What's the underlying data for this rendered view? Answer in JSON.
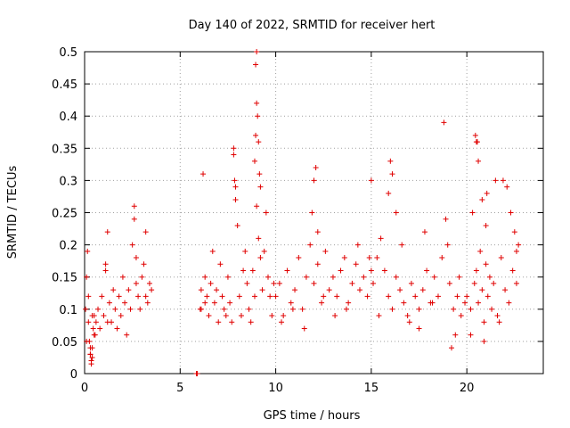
{
  "chart_data": {
    "type": "scatter",
    "title": "Day 140 of 2022, SRMTID for receiver hert",
    "xlabel": "GPS time / hours",
    "ylabel": "SRMTID / TECUs",
    "xlim": [
      0,
      24
    ],
    "ylim": [
      0,
      0.5
    ],
    "xticks": [
      0,
      5,
      10,
      15,
      20
    ],
    "xtick_labels": [
      "0",
      "5",
      "10",
      "15",
      "20"
    ],
    "yticks": [
      0,
      0.05,
      0.1,
      0.15,
      0.2,
      0.25,
      0.3,
      0.35,
      0.4,
      0.45,
      0.5
    ],
    "ytick_labels": [
      "0",
      "0.05",
      "0.1",
      "0.15",
      "0.2",
      "0.25",
      "0.3",
      "0.35",
      "0.4",
      "0.45",
      "0.5"
    ],
    "grid": true,
    "legend": "none",
    "marker": "plus",
    "color": "#e00000",
    "x": [
      0.05,
      0.1,
      0.15,
      0.2,
      0.25,
      0.3,
      0.35,
      0.4,
      0.45,
      0.5,
      0.55,
      0.6,
      0.7,
      0.8,
      0.9,
      1.0,
      1.1,
      1.2,
      1.3,
      1.4,
      1.5,
      1.6,
      1.7,
      1.8,
      1.9,
      2.0,
      2.1,
      2.2,
      2.3,
      2.4,
      2.5,
      2.6,
      2.7,
      2.8,
      2.9,
      3.0,
      3.1,
      3.2,
      3.3,
      3.4,
      3.5,
      0.1,
      0.2,
      0.3,
      0.4,
      0.5,
      1.1,
      1.2,
      2.6,
      2.7,
      3.2,
      0.3,
      0.35,
      0.4,
      5.85,
      5.9,
      6.05,
      6.1,
      6.2,
      6.3,
      6.4,
      6.5,
      6.6,
      6.7,
      6.8,
      6.9,
      7.0,
      7.1,
      7.2,
      7.3,
      7.4,
      7.5,
      7.6,
      7.7,
      7.8,
      7.9,
      8.0,
      8.1,
      8.2,
      8.3,
      8.4,
      8.5,
      8.6,
      8.7,
      8.8,
      8.9,
      9.0,
      9.1,
      9.2,
      9.3,
      9.4,
      9.5,
      9.6,
      9.7,
      9.8,
      9.9,
      6.1,
      6.3,
      7.8,
      7.85,
      7.9,
      8.9,
      8.95,
      9.0,
      9.05,
      9.1,
      9.15,
      9.2,
      8.95,
      9.0,
      10.0,
      10.2,
      10.4,
      10.6,
      10.8,
      11.0,
      11.2,
      11.4,
      11.6,
      11.8,
      12.0,
      12.2,
      12.4,
      12.6,
      12.8,
      13.0,
      13.2,
      13.4,
      13.6,
      13.8,
      14.0,
      14.2,
      14.4,
      14.6,
      14.8,
      15.0,
      11.9,
      12.0,
      12.1,
      12.2,
      10.3,
      10.9,
      11.5,
      12.5,
      13.1,
      13.7,
      14.3,
      14.9,
      15.1,
      15.3,
      15.5,
      15.7,
      15.9,
      16.1,
      16.3,
      16.5,
      16.7,
      16.9,
      17.1,
      17.3,
      17.5,
      17.7,
      17.9,
      18.1,
      18.3,
      18.5,
      18.7,
      18.9,
      19.1,
      19.3,
      19.5,
      19.7,
      19.9,
      15.0,
      15.9,
      16.0,
      16.1,
      16.3,
      17.0,
      17.5,
      18.2,
      18.8,
      19.0,
      19.2,
      19.4,
      19.6,
      15.4,
      16.6,
      17.8,
      20.0,
      20.2,
      20.4,
      20.5,
      20.6,
      20.7,
      20.8,
      20.9,
      21.0,
      21.1,
      21.2,
      21.3,
      21.4,
      21.6,
      21.8,
      22.0,
      22.2,
      22.4,
      22.6,
      22.7,
      20.3,
      20.5,
      20.6,
      20.8,
      21.0,
      21.5,
      21.9,
      22.1,
      22.3,
      22.5,
      20.2,
      20.9,
      21.7,
      22.6,
      20.45,
      20.55,
      21.05
    ],
    "y": [
      0.1,
      0.15,
      0.19,
      0.08,
      0.05,
      0.03,
      0.02,
      0.04,
      0.07,
      0.09,
      0.06,
      0.08,
      0.1,
      0.07,
      0.12,
      0.09,
      0.16,
      0.22,
      0.11,
      0.08,
      0.13,
      0.1,
      0.07,
      0.12,
      0.09,
      0.15,
      0.11,
      0.06,
      0.13,
      0.1,
      0.2,
      0.24,
      0.14,
      0.12,
      0.1,
      0.15,
      0.17,
      0.12,
      0.11,
      0.14,
      0.13,
      0.05,
      0.12,
      0.03,
      0.09,
      0.06,
      0.17,
      0.08,
      0.26,
      0.18,
      0.22,
      0.04,
      0.015,
      0.025,
      0.0,
      0.0,
      0.1,
      0.13,
      0.31,
      0.15,
      0.12,
      0.09,
      0.14,
      0.19,
      0.11,
      0.13,
      0.08,
      0.17,
      0.12,
      0.1,
      0.09,
      0.15,
      0.11,
      0.08,
      0.35,
      0.29,
      0.23,
      0.12,
      0.09,
      0.16,
      0.19,
      0.14,
      0.1,
      0.08,
      0.16,
      0.12,
      0.26,
      0.21,
      0.18,
      0.13,
      0.19,
      0.25,
      0.15,
      0.12,
      0.09,
      0.14,
      0.1,
      0.11,
      0.34,
      0.3,
      0.27,
      0.33,
      0.37,
      0.42,
      0.4,
      0.36,
      0.31,
      0.29,
      0.48,
      0.5,
      0.12,
      0.14,
      0.09,
      0.16,
      0.11,
      0.13,
      0.18,
      0.1,
      0.15,
      0.2,
      0.14,
      0.17,
      0.11,
      0.19,
      0.13,
      0.15,
      0.12,
      0.16,
      0.18,
      0.11,
      0.14,
      0.17,
      0.13,
      0.15,
      0.12,
      0.16,
      0.25,
      0.3,
      0.32,
      0.22,
      0.08,
      0.1,
      0.07,
      0.12,
      0.09,
      0.1,
      0.2,
      0.18,
      0.14,
      0.18,
      0.21,
      0.16,
      0.12,
      0.1,
      0.15,
      0.13,
      0.11,
      0.09,
      0.14,
      0.12,
      0.1,
      0.13,
      0.16,
      0.11,
      0.15,
      0.12,
      0.18,
      0.24,
      0.14,
      0.1,
      0.12,
      0.09,
      0.11,
      0.3,
      0.28,
      0.33,
      0.31,
      0.25,
      0.08,
      0.07,
      0.11,
      0.39,
      0.2,
      0.04,
      0.06,
      0.15,
      0.09,
      0.2,
      0.22,
      0.12,
      0.1,
      0.14,
      0.16,
      0.11,
      0.19,
      0.13,
      0.08,
      0.17,
      0.12,
      0.15,
      0.1,
      0.14,
      0.09,
      0.18,
      0.13,
      0.11,
      0.16,
      0.19,
      0.2,
      0.25,
      0.36,
      0.33,
      0.27,
      0.23,
      0.3,
      0.3,
      0.29,
      0.25,
      0.22,
      0.06,
      0.05,
      0.08,
      0.14,
      0.37,
      0.36,
      0.28
    ]
  }
}
